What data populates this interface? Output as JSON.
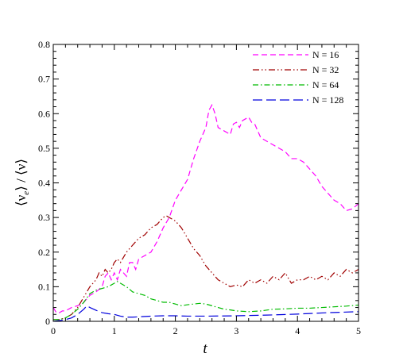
{
  "chart_data": {
    "type": "line",
    "title": "",
    "xlabel": "t",
    "ylabel": "⟨ν_e⟩ / ⟨ν⟩",
    "xlim": [
      0,
      5
    ],
    "ylim": [
      0,
      0.8
    ],
    "x_ticks": [
      "0",
      "1",
      "2",
      "3",
      "4",
      "5"
    ],
    "y_ticks": [
      "0",
      "0.1",
      "0.2",
      "0.3",
      "0.4",
      "0.5",
      "0.6",
      "0.7",
      "0.8"
    ],
    "x_tick_values": [
      0,
      1,
      2,
      3,
      4,
      5
    ],
    "y_tick_values": [
      0,
      0.1,
      0.2,
      0.3,
      0.4,
      0.5,
      0.6,
      0.7,
      0.8
    ],
    "grid": false,
    "legend_position": "top-right",
    "series": [
      {
        "name": "N = 16",
        "color": "#ff00ff",
        "dash": "dash",
        "x": [
          0,
          0.05,
          0.1,
          0.15,
          0.2,
          0.3,
          0.4,
          0.5,
          0.6,
          0.7,
          0.8,
          0.85,
          0.9,
          0.95,
          1.0,
          1.05,
          1.1,
          1.2,
          1.25,
          1.3,
          1.35,
          1.4,
          1.5,
          1.6,
          1.7,
          1.8,
          1.9,
          2.0,
          2.1,
          2.2,
          2.3,
          2.4,
          2.5,
          2.55,
          2.6,
          2.65,
          2.7,
          2.8,
          2.9,
          2.95,
          3.0,
          3.05,
          3.1,
          3.2,
          3.25,
          3.3,
          3.4,
          3.5,
          3.6,
          3.7,
          3.8,
          3.9,
          4.0,
          4.1,
          4.2,
          4.3,
          4.4,
          4.5,
          4.6,
          4.7,
          4.8,
          4.9,
          5.0
        ],
        "values": [
          0.04,
          0.025,
          0.025,
          0.03,
          0.03,
          0.04,
          0.045,
          0.055,
          0.075,
          0.085,
          0.1,
          0.13,
          0.14,
          0.12,
          0.14,
          0.12,
          0.15,
          0.13,
          0.17,
          0.17,
          0.15,
          0.18,
          0.19,
          0.2,
          0.23,
          0.27,
          0.3,
          0.35,
          0.38,
          0.41,
          0.47,
          0.52,
          0.56,
          0.61,
          0.625,
          0.6,
          0.56,
          0.55,
          0.54,
          0.57,
          0.575,
          0.56,
          0.58,
          0.59,
          0.575,
          0.57,
          0.53,
          0.52,
          0.51,
          0.5,
          0.49,
          0.47,
          0.47,
          0.46,
          0.44,
          0.42,
          0.39,
          0.37,
          0.35,
          0.34,
          0.32,
          0.325,
          0.34
        ]
      },
      {
        "name": "N = 32",
        "color": "#a00000",
        "dash": "dashdotdot",
        "x": [
          0,
          0.1,
          0.2,
          0.3,
          0.4,
          0.5,
          0.6,
          0.7,
          0.75,
          0.8,
          0.85,
          0.9,
          0.95,
          1.0,
          1.05,
          1.1,
          1.2,
          1.3,
          1.4,
          1.5,
          1.6,
          1.7,
          1.8,
          1.85,
          1.9,
          2.0,
          2.1,
          2.2,
          2.3,
          2.4,
          2.5,
          2.6,
          2.7,
          2.8,
          2.9,
          3.0,
          3.1,
          3.2,
          3.3,
          3.4,
          3.5,
          3.6,
          3.7,
          3.8,
          3.9,
          4.0,
          4.1,
          4.2,
          4.3,
          4.4,
          4.5,
          4.6,
          4.7,
          4.8,
          4.9,
          5.0
        ],
        "values": [
          0.005,
          0.005,
          0.01,
          0.02,
          0.04,
          0.07,
          0.1,
          0.12,
          0.14,
          0.13,
          0.15,
          0.14,
          0.15,
          0.17,
          0.18,
          0.17,
          0.2,
          0.22,
          0.24,
          0.25,
          0.27,
          0.28,
          0.3,
          0.305,
          0.3,
          0.29,
          0.27,
          0.24,
          0.21,
          0.19,
          0.16,
          0.14,
          0.12,
          0.11,
          0.1,
          0.105,
          0.1,
          0.12,
          0.11,
          0.12,
          0.11,
          0.13,
          0.12,
          0.14,
          0.11,
          0.12,
          0.12,
          0.13,
          0.12,
          0.13,
          0.12,
          0.14,
          0.13,
          0.15,
          0.14,
          0.15
        ]
      },
      {
        "name": "N = 64",
        "color": "#00bb00",
        "dash": "dashdot",
        "x": [
          0,
          0.1,
          0.2,
          0.3,
          0.4,
          0.5,
          0.6,
          0.7,
          0.8,
          0.9,
          1.0,
          1.05,
          1.1,
          1.2,
          1.3,
          1.4,
          1.5,
          1.6,
          1.7,
          1.8,
          1.9,
          2.0,
          2.1,
          2.2,
          2.3,
          2.4,
          2.5,
          2.6,
          2.7,
          2.8,
          2.9,
          3.0,
          3.2,
          3.4,
          3.6,
          3.8,
          4.0,
          4.2,
          4.4,
          4.6,
          4.8,
          5.0
        ],
        "values": [
          0.005,
          0.005,
          0.01,
          0.02,
          0.035,
          0.055,
          0.08,
          0.09,
          0.095,
          0.1,
          0.11,
          0.115,
          0.11,
          0.1,
          0.085,
          0.08,
          0.075,
          0.065,
          0.06,
          0.055,
          0.055,
          0.05,
          0.045,
          0.048,
          0.05,
          0.052,
          0.05,
          0.045,
          0.04,
          0.035,
          0.033,
          0.03,
          0.028,
          0.03,
          0.035,
          0.036,
          0.038,
          0.038,
          0.04,
          0.042,
          0.044,
          0.047
        ]
      },
      {
        "name": "N = 128",
        "color": "#0000dd",
        "dash": "longdash",
        "x": [
          0,
          0.1,
          0.2,
          0.3,
          0.4,
          0.5,
          0.55,
          0.6,
          0.7,
          0.8,
          0.9,
          1.0,
          1.1,
          1.2,
          1.3,
          1.4,
          1.6,
          1.8,
          2.0,
          2.2,
          2.5,
          3.0,
          3.5,
          4.0,
          4.5,
          5.0
        ],
        "values": [
          0.0,
          0.002,
          0.005,
          0.01,
          0.02,
          0.035,
          0.045,
          0.04,
          0.032,
          0.025,
          0.022,
          0.02,
          0.015,
          0.012,
          0.012,
          0.013,
          0.015,
          0.016,
          0.016,
          0.015,
          0.015,
          0.016,
          0.018,
          0.021,
          0.025,
          0.028
        ]
      }
    ]
  }
}
